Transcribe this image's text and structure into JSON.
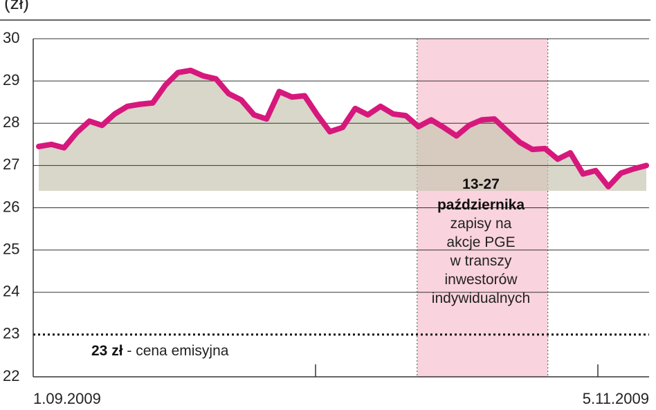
{
  "unit_label": "(zł)",
  "chart_data": {
    "type": "line",
    "ylim": [
      22,
      30
    ],
    "yticks": [
      "30",
      "29",
      "28",
      "27",
      "26",
      "25",
      "24",
      "23",
      "22"
    ],
    "grid": true,
    "x_start_label": "1.09.2009",
    "x_end_label": "5.11.2009",
    "series": [
      {
        "color": "#d6187d",
        "fill_color": "#c9c6b2",
        "values": [
          27.45,
          27.5,
          27.42,
          27.78,
          28.05,
          27.95,
          28.22,
          28.4,
          28.45,
          28.48,
          28.9,
          29.2,
          29.25,
          29.12,
          29.05,
          28.7,
          28.55,
          28.2,
          28.1,
          28.75,
          28.62,
          28.65,
          28.2,
          27.8,
          27.9,
          28.35,
          28.2,
          28.4,
          28.22,
          28.18,
          27.92,
          28.08,
          27.9,
          27.7,
          27.95,
          28.08,
          28.1,
          27.82,
          27.55,
          27.38,
          27.4,
          27.15,
          27.3,
          26.8,
          26.88,
          26.5,
          26.82,
          26.92,
          27.0
        ]
      }
    ],
    "highlight": {
      "color": "#f9d3dd",
      "from_index": 30,
      "to_index": 40,
      "title": "13-27",
      "subtitle": "października",
      "lines": [
        "zapisy na",
        "akcje PGE",
        "w transzy",
        "inwestorów",
        "indywidualnych"
      ]
    },
    "reference_line": {
      "value": 23,
      "label_bold": "23 zł",
      "label_rest": " - cena emisyjna"
    }
  }
}
